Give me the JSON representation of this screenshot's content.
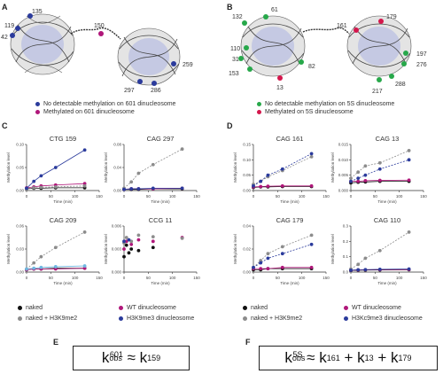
{
  "panel_letters": {
    "A": "A",
    "B": "B",
    "C": "C",
    "D": "D",
    "E": "E",
    "F": "F"
  },
  "colors": {
    "blue": "#2b3b9c",
    "magenta": "#b0177a",
    "green": "#27a84a",
    "red": "#d4174c",
    "gray": "#8c8c8c",
    "black": "#111111",
    "light_blue": "#6fb7e0"
  },
  "panel_A": {
    "site_numbers": [
      "135",
      "119",
      "42",
      "150",
      "259",
      "297",
      "286"
    ],
    "legend": [
      "No detectable methylation on 601 dinucleosome",
      "Methylated on 601 dinucleosome"
    ]
  },
  "panel_B": {
    "site_numbers": [
      "61",
      "132",
      "110",
      "31",
      "153",
      "82",
      "13",
      "161",
      "179",
      "197",
      "276",
      "217",
      "288"
    ],
    "legend": [
      "No detectable methylation on 5S dinucleosome",
      "Methylated on 5S dinucleosome"
    ]
  },
  "panel_C": {
    "legend": [
      "naked",
      "WT dinucleosome",
      "naked + H3K9me2",
      "H3K9me3 dinucleosome"
    ]
  },
  "panel_D": {
    "legend": [
      "naked",
      "WT dinucleosome",
      "naked + H3K9me2",
      "H3Kc9me3 dinucleosome"
    ]
  },
  "formula_E": {
    "k": "k",
    "obs_sub": "obs",
    "obs_sup": "601",
    "approx": " ≈ ",
    "rhs_sub": "159"
  },
  "formula_F": {
    "k": "k",
    "obs_sub": "obs",
    "obs_sup": "5S",
    "approx": " ≈ ",
    "t1": "161",
    "t2": "13",
    "t3": "179",
    "plus": " + "
  },
  "chart_data": [
    {
      "type": "line",
      "title": "CTG 159",
      "xlabel": "Time (min)",
      "ylabel": "Methylation level",
      "xlim": [
        0,
        150
      ],
      "ylim": [
        0,
        0.1
      ],
      "xticks": [
        "0",
        "50",
        "100",
        "150"
      ],
      "yticks": [
        "0.00",
        "0.05",
        "0.10"
      ],
      "series": [
        {
          "name": "naked",
          "color": "#111111",
          "dash": false,
          "x": [
            0,
            15,
            30,
            60,
            120
          ],
          "y": [
            0.004,
            0.005,
            0.005,
            0.006,
            0.006
          ]
        },
        {
          "name": "WT dinucleosome",
          "color": "#b0177a",
          "dash": false,
          "x": [
            0,
            15,
            30,
            60,
            120
          ],
          "y": [
            0.006,
            0.008,
            0.01,
            0.012,
            0.015
          ]
        },
        {
          "name": "naked + H3K9me2",
          "color": "#8c8c8c",
          "dash": true,
          "x": [
            0,
            15,
            30,
            60,
            120
          ],
          "y": [
            0.004,
            0.006,
            0.007,
            0.008,
            0.01
          ]
        },
        {
          "name": "H3K9me3 dinucleosome",
          "color": "#2b3b9c",
          "dash": false,
          "x": [
            0,
            15,
            30,
            60,
            120
          ],
          "y": [
            0.005,
            0.02,
            0.032,
            0.05,
            0.088
          ]
        }
      ]
    },
    {
      "type": "line",
      "title": "CAG 297",
      "xlabel": "Time (min)",
      "ylabel": "Methylation level",
      "xlim": [
        0,
        150
      ],
      "ylim": [
        0,
        0.08
      ],
      "xticks": [
        "0",
        "50",
        "100",
        "150"
      ],
      "yticks": [
        "0.00",
        "0.04",
        "0.08"
      ],
      "series": [
        {
          "name": "naked",
          "color": "#111111",
          "dash": false,
          "x": [
            0,
            15,
            30,
            60,
            120
          ],
          "y": [
            0.002,
            0.002,
            0.002,
            0.003,
            0.003
          ]
        },
        {
          "name": "WT dinucleosome",
          "color": "#b0177a",
          "dash": false,
          "x": [
            0,
            15,
            30,
            60,
            120
          ],
          "y": [
            0.002,
            0.003,
            0.003,
            0.003,
            0.004
          ]
        },
        {
          "name": "naked + H3K9me2",
          "color": "#8c8c8c",
          "dash": true,
          "x": [
            0,
            15,
            30,
            60,
            120
          ],
          "y": [
            0.004,
            0.015,
            0.03,
            0.045,
            0.072
          ]
        },
        {
          "name": "H3K9me3 dinucleosome",
          "color": "#2b3b9c",
          "dash": false,
          "x": [
            0,
            15,
            30,
            60,
            120
          ],
          "y": [
            0.002,
            0.003,
            0.003,
            0.004,
            0.004
          ]
        }
      ]
    },
    {
      "type": "line",
      "title": "CAG 209",
      "xlabel": "Time (min)",
      "ylabel": "Methylation level",
      "xlim": [
        0,
        150
      ],
      "ylim": [
        0,
        0.06
      ],
      "xticks": [
        "0",
        "50",
        "100",
        "150"
      ],
      "yticks": [
        "0.00",
        "0.03",
        "0.06"
      ],
      "series": [
        {
          "name": "naked",
          "color": "#111111",
          "dash": false,
          "x": [
            0,
            15,
            30,
            60,
            120
          ],
          "y": [
            0.003,
            0.004,
            0.004,
            0.005,
            0.005
          ]
        },
        {
          "name": "WT dinucleosome",
          "color": "#b0177a",
          "dash": false,
          "x": [
            0,
            15,
            30,
            60,
            120
          ],
          "y": [
            0.003,
            0.004,
            0.004,
            0.004,
            0.005
          ]
        },
        {
          "name": "naked + H3K9me2",
          "color": "#8c8c8c",
          "dash": true,
          "x": [
            0,
            15,
            30,
            60,
            120
          ],
          "y": [
            0.004,
            0.012,
            0.02,
            0.032,
            0.052
          ]
        },
        {
          "name": "H3K9me3 dinucleosome",
          "color": "#6fb7e0",
          "dash": false,
          "x": [
            0,
            15,
            30,
            60,
            120
          ],
          "y": [
            0.004,
            0.005,
            0.006,
            0.007,
            0.008
          ]
        }
      ]
    },
    {
      "type": "scatter",
      "title": "CCG 11",
      "xlabel": "Time (min)",
      "ylabel": "Methylation level",
      "xlim": [
        0,
        150
      ],
      "ylim": [
        0,
        0.006
      ],
      "xticks": [
        "0",
        "50",
        "100",
        "150"
      ],
      "yticks": [
        "0.000",
        "0.003",
        "0.006"
      ],
      "series": [
        {
          "name": "naked",
          "color": "#111111",
          "dash": false,
          "x": [
            0,
            5,
            10,
            15,
            30,
            60
          ],
          "y": [
            0.002,
            0.0035,
            0.0025,
            0.003,
            0.0028,
            0.0032
          ]
        },
        {
          "name": "WT dinucleosome",
          "color": "#b0177a",
          "dash": false,
          "x": [
            0,
            5,
            15,
            30,
            60,
            120
          ],
          "y": [
            0.003,
            0.004,
            0.0036,
            0.0042,
            0.004,
            0.0045
          ]
        },
        {
          "name": "naked + H3K9me2",
          "color": "#8c8c8c",
          "dash": false,
          "x": [
            0,
            5,
            15,
            30,
            60,
            120
          ],
          "y": [
            0.0038,
            0.0045,
            0.004,
            0.0048,
            0.0046,
            0.0044
          ]
        },
        {
          "name": "H3K9me3 dinucleosome",
          "color": "#2b3b9c",
          "dash": false,
          "x": [
            0,
            10
          ],
          "y": [
            0.004,
            0.0042
          ]
        }
      ]
    },
    {
      "type": "line",
      "title": "CAG 161",
      "xlabel": "Time (min)",
      "ylabel": "Methylation level",
      "xlim": [
        0,
        150
      ],
      "ylim": [
        0,
        0.15
      ],
      "xticks": [
        "0",
        "50",
        "100",
        "150"
      ],
      "yticks": [
        "0.00",
        "0.05",
        "0.10",
        "0.15"
      ],
      "series": [
        {
          "name": "naked",
          "color": "#111111",
          "dash": false,
          "x": [
            0,
            15,
            30,
            60,
            120
          ],
          "y": [
            0.01,
            0.012,
            0.012,
            0.013,
            0.013
          ]
        },
        {
          "name": "WT dinucleosome",
          "color": "#b0177a",
          "dash": false,
          "x": [
            0,
            15,
            30,
            60,
            120
          ],
          "y": [
            0.012,
            0.013,
            0.014,
            0.015,
            0.015
          ]
        },
        {
          "name": "naked + H3K9me2",
          "color": "#8c8c8c",
          "dash": true,
          "x": [
            0,
            15,
            30,
            60,
            120
          ],
          "y": [
            0.02,
            0.03,
            0.045,
            0.065,
            0.11
          ]
        },
        {
          "name": "H3Kc9me3 dinucleosome",
          "color": "#2b3b9c",
          "dash": true,
          "x": [
            0,
            15,
            30,
            60,
            120
          ],
          "y": [
            0.015,
            0.03,
            0.05,
            0.07,
            0.12
          ]
        }
      ]
    },
    {
      "type": "line",
      "title": "CAG 13",
      "xlabel": "Time (min)",
      "ylabel": "Methylation level",
      "xlim": [
        0,
        150
      ],
      "ylim": [
        0,
        0.015
      ],
      "xticks": [
        "0",
        "50",
        "100",
        "150"
      ],
      "yticks": [
        "0.000",
        "0.005",
        "0.010",
        "0.015"
      ],
      "series": [
        {
          "name": "naked",
          "color": "#111111",
          "dash": false,
          "x": [
            0,
            15,
            30,
            60,
            120
          ],
          "y": [
            0.0025,
            0.0027,
            0.0028,
            0.003,
            0.003
          ]
        },
        {
          "name": "WT dinucleosome",
          "color": "#b0177a",
          "dash": false,
          "x": [
            0,
            15,
            30,
            60,
            120
          ],
          "y": [
            0.003,
            0.003,
            0.0032,
            0.0033,
            0.0034
          ]
        },
        {
          "name": "naked + H3K9me2",
          "color": "#8c8c8c",
          "dash": true,
          "x": [
            0,
            15,
            30,
            60,
            120
          ],
          "y": [
            0.004,
            0.006,
            0.008,
            0.009,
            0.013
          ]
        },
        {
          "name": "H3Kc9me3 dinucleosome",
          "color": "#2b3b9c",
          "dash": true,
          "x": [
            0,
            15,
            30,
            60,
            120
          ],
          "y": [
            0.003,
            0.004,
            0.005,
            0.007,
            0.01
          ]
        }
      ]
    },
    {
      "type": "line",
      "title": "CAG 179",
      "xlabel": "Time (min)",
      "ylabel": "Methylation level",
      "xlim": [
        0,
        150
      ],
      "ylim": [
        0,
        0.04
      ],
      "xticks": [
        "0",
        "50",
        "100",
        "150"
      ],
      "yticks": [
        "0.00",
        "0.02",
        "0.04"
      ],
      "series": [
        {
          "name": "naked",
          "color": "#111111",
          "dash": false,
          "x": [
            0,
            15,
            30,
            60,
            120
          ],
          "y": [
            0.002,
            0.002,
            0.003,
            0.003,
            0.003
          ]
        },
        {
          "name": "WT dinucleosome",
          "color": "#b0177a",
          "dash": false,
          "x": [
            0,
            15,
            30,
            60,
            120
          ],
          "y": [
            0.003,
            0.003,
            0.003,
            0.004,
            0.004
          ]
        },
        {
          "name": "naked + H3K9me2",
          "color": "#8c8c8c",
          "dash": true,
          "x": [
            0,
            15,
            30,
            60,
            120
          ],
          "y": [
            0.004,
            0.01,
            0.016,
            0.022,
            0.032
          ]
        },
        {
          "name": "H3Kc9me3 dinucleosome",
          "color": "#2b3b9c",
          "dash": true,
          "x": [
            0,
            15,
            30,
            60,
            120
          ],
          "y": [
            0.004,
            0.008,
            0.012,
            0.016,
            0.024
          ]
        }
      ]
    },
    {
      "type": "line",
      "title": "CAG 110",
      "xlabel": "Time (min)",
      "ylabel": "Methylation level",
      "xlim": [
        0,
        150
      ],
      "ylim": [
        0,
        0.3
      ],
      "xticks": [
        "0",
        "50",
        "100",
        "150"
      ],
      "yticks": [
        "0.0",
        "0.1",
        "0.2",
        "0.3"
      ],
      "series": [
        {
          "name": "naked",
          "color": "#111111",
          "dash": false,
          "x": [
            0,
            15,
            30,
            60,
            120
          ],
          "y": [
            0.01,
            0.012,
            0.013,
            0.014,
            0.015
          ]
        },
        {
          "name": "WT dinucleosome",
          "color": "#b0177a",
          "dash": false,
          "x": [
            0,
            15,
            30,
            60,
            120
          ],
          "y": [
            0.012,
            0.014,
            0.015,
            0.016,
            0.017
          ]
        },
        {
          "name": "naked + H3K9me2",
          "color": "#8c8c8c",
          "dash": true,
          "x": [
            0,
            15,
            30,
            60,
            120
          ],
          "y": [
            0.02,
            0.05,
            0.09,
            0.14,
            0.26
          ]
        },
        {
          "name": "H3Kc9me3 dinucleosome",
          "color": "#2b3b9c",
          "dash": false,
          "x": [
            0,
            15,
            30,
            60,
            120
          ],
          "y": [
            0.012,
            0.015,
            0.016,
            0.018,
            0.02
          ]
        }
      ]
    }
  ]
}
